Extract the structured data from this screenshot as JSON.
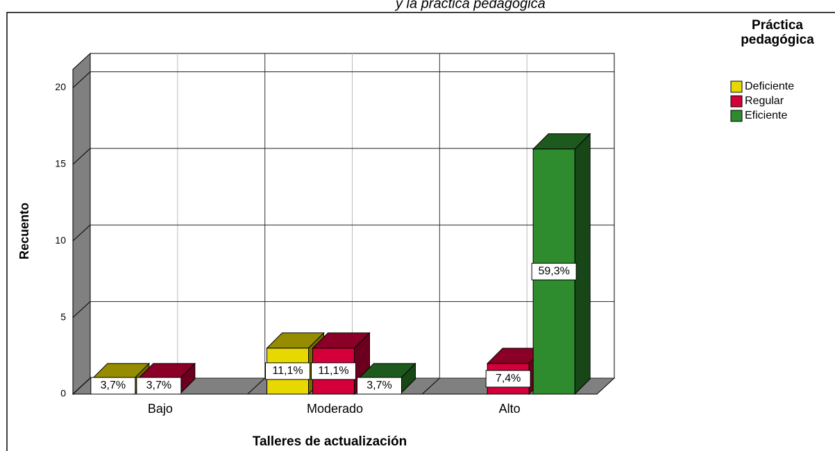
{
  "chart_data": {
    "type": "bar3d",
    "title": "y la práctica pedagógica",
    "x_label": "Talleres de actualización",
    "y_label": "Recuento",
    "legend_title": "Práctica pedagógica",
    "legend_position": "top-right",
    "categories": [
      "Bajo",
      "Moderado",
      "Alto"
    ],
    "series": [
      {
        "name": "Deficiente",
        "color": "#e6d800",
        "values": [
          1,
          3,
          null
        ],
        "value_labels": [
          "3,7%",
          "11,1%",
          null
        ]
      },
      {
        "name": "Regular",
        "color": "#d4003a",
        "values": [
          1,
          3,
          2
        ],
        "value_labels": [
          "3,7%",
          "11,1%",
          "7,4%"
        ]
      },
      {
        "name": "Eficiente",
        "color": "#2e8b2e",
        "values": [
          null,
          1,
          16
        ],
        "value_labels": [
          null,
          "3,7%",
          "59,3%"
        ]
      }
    ],
    "ylim": [
      0,
      21.2
    ],
    "yticks": [
      0,
      5,
      10,
      15,
      20
    ],
    "grid": true
  }
}
